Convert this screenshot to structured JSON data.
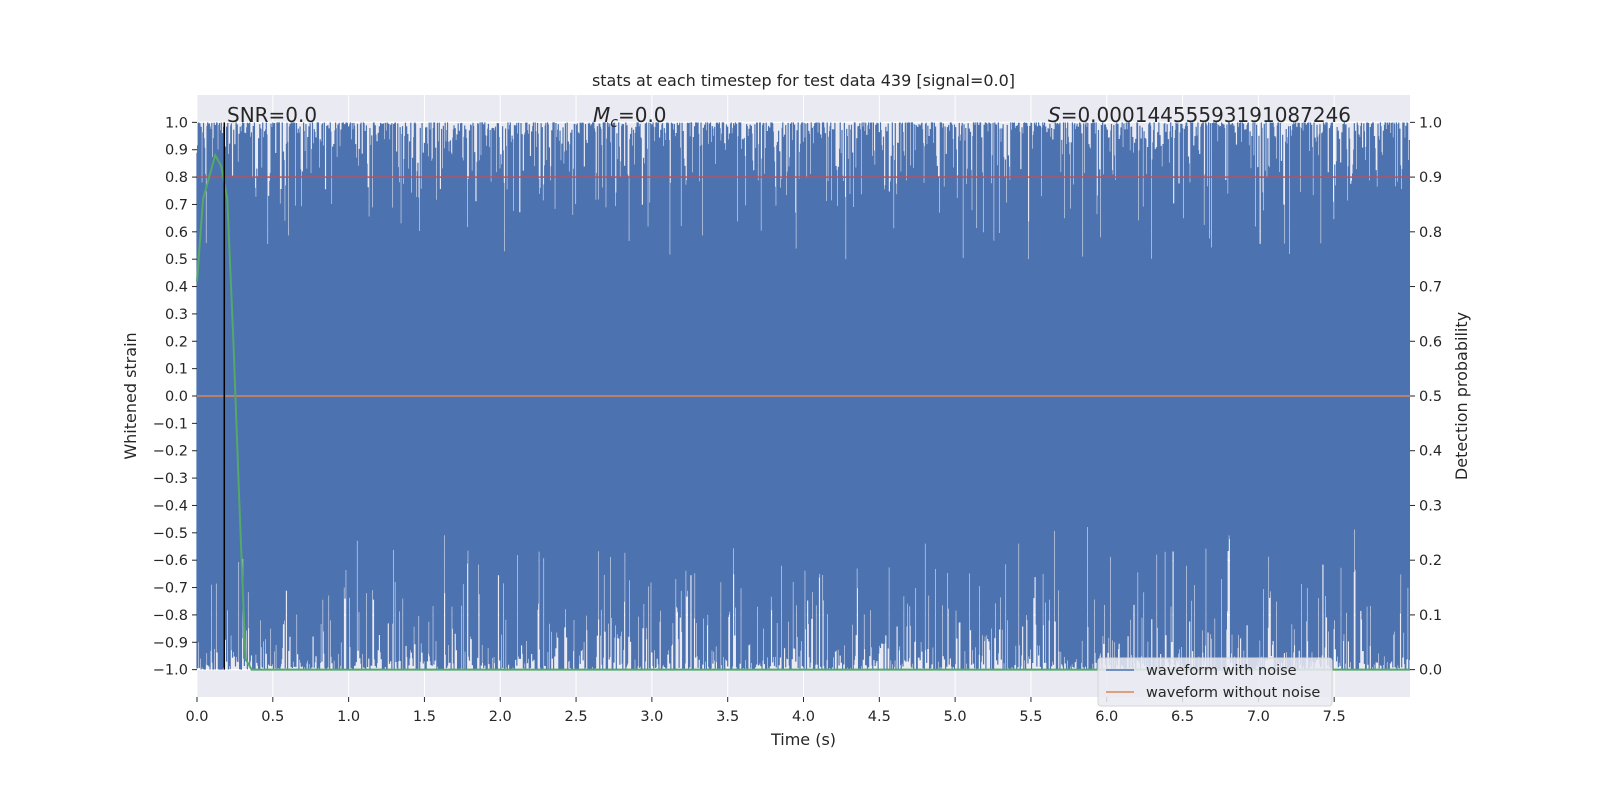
{
  "chart_data": {
    "type": "line",
    "title": "stats at each timestep for test data 439 [signal=0.0]",
    "xlabel": "Time (s)",
    "ylabel_left": "Whitened strain",
    "ylabel_right": "Detection probability",
    "xlim": [
      0.0,
      8.0
    ],
    "ylim_left": [
      -1.1,
      1.1
    ],
    "ylim_right": [
      -0.05,
      1.05
    ],
    "x_ticks": [
      "0.0",
      "0.5",
      "1.0",
      "1.5",
      "2.0",
      "2.5",
      "3.0",
      "3.5",
      "4.0",
      "4.5",
      "5.0",
      "5.5",
      "6.0",
      "6.5",
      "7.0",
      "7.5"
    ],
    "y_ticks_left": [
      "1.0",
      "0.9",
      "0.8",
      "0.7",
      "0.6",
      "0.5",
      "0.4",
      "0.3",
      "0.2",
      "0.1",
      "0.0",
      "−0.1",
      "−0.2",
      "−0.3",
      "−0.4",
      "−0.5",
      "−0.6",
      "−0.7",
      "−0.8",
      "−0.9",
      "−1.0"
    ],
    "y_ticks_right": [
      "1.0",
      "0.9",
      "0.8",
      "0.7",
      "0.6",
      "0.5",
      "0.4",
      "0.3",
      "0.2",
      "0.1",
      "0.0"
    ],
    "grid": true,
    "legend_placement": "lower-right",
    "annotations": {
      "snr": "SNR=0.0",
      "mc_symbol": "M",
      "mc_subscript": "c",
      "mc_value": "=0.0",
      "s_symbol": "S",
      "s_value": "=0.00014455593191087246"
    },
    "marker_line_x": 0.18,
    "threshold_right": 0.9,
    "series": [
      {
        "name": "waveform with noise",
        "color": "#4c72b0",
        "axis": "left",
        "description_values": {
          "envelope": [
            -1.0,
            1.0
          ],
          "sample_count": 2048
        }
      },
      {
        "name": "waveform without noise",
        "color": "#dd8452",
        "axis": "left",
        "x": [
          0.0,
          8.0
        ],
        "y": [
          0.0,
          0.0
        ]
      }
    ],
    "probability_series": {
      "color": "#55a868",
      "axis": "right",
      "x": [
        0.0,
        0.04,
        0.08,
        0.12,
        0.16,
        0.2,
        0.24,
        0.28,
        0.32,
        0.36,
        1.0,
        2.0,
        3.0,
        4.0,
        5.0,
        6.0,
        7.0,
        8.0
      ],
      "y": [
        0.71,
        0.86,
        0.9,
        0.94,
        0.92,
        0.86,
        0.6,
        0.3,
        0.02,
        0.0,
        0.0,
        0.0,
        0.0,
        0.0,
        0.0,
        0.0,
        0.0,
        0.0
      ]
    },
    "threshold_color": "#c44e52",
    "marker_color": "#000000",
    "background_color": "#eaeaf2"
  }
}
